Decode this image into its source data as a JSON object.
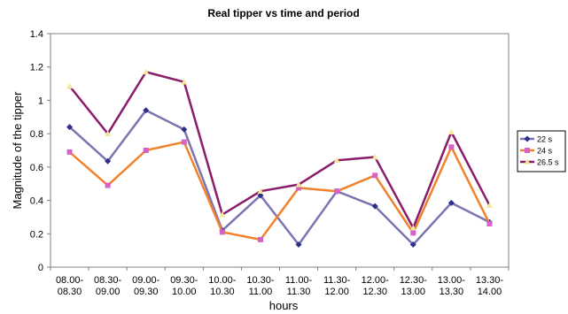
{
  "chart_data": {
    "type": "line",
    "title": "Real tipper vs time and period",
    "xlabel": "hours",
    "ylabel": "Magnitude of the tipper",
    "ylim": [
      0,
      1.4
    ],
    "yticks": [
      "0",
      "0.2",
      "0.4",
      "0.6",
      "0.8",
      "1",
      "1.2",
      "1.4"
    ],
    "grid": false,
    "legend_position": "right",
    "categories": [
      [
        "08.00-",
        "08.30"
      ],
      [
        "08.30-",
        "09.00"
      ],
      [
        "09.00-",
        "09.30"
      ],
      [
        "09.30-",
        "10.00"
      ],
      [
        "10.00-",
        "10.30"
      ],
      [
        "10.30-",
        "11.00"
      ],
      [
        "11.00-",
        "11.30"
      ],
      [
        "11.30-",
        "12.00"
      ],
      [
        "12.00-",
        "12.30"
      ],
      [
        "12.30-",
        "13.00"
      ],
      [
        "13.00-",
        "13.30"
      ],
      [
        "13.30-",
        "14.00"
      ]
    ],
    "series": [
      {
        "name": "22 s",
        "color": "#7c74b0",
        "marker_color": "#2e2f8a",
        "marker": "diamond",
        "values": [
          0.84,
          0.635,
          0.94,
          0.825,
          0.22,
          0.43,
          0.135,
          0.455,
          0.365,
          0.135,
          0.385,
          0.27
        ]
      },
      {
        "name": "24 s",
        "color": "#f0822d",
        "marker_color": "#d562c7",
        "marker": "square",
        "values": [
          0.69,
          0.49,
          0.7,
          0.75,
          0.21,
          0.165,
          0.475,
          0.455,
          0.55,
          0.205,
          0.72,
          0.26
        ]
      },
      {
        "name": "26.5 s",
        "color": "#8a1c6a",
        "marker_color": "#f2e899",
        "marker": "triangle",
        "values": [
          1.085,
          0.8,
          1.17,
          1.11,
          0.315,
          0.455,
          0.495,
          0.64,
          0.66,
          0.235,
          0.81,
          0.37
        ]
      }
    ]
  }
}
